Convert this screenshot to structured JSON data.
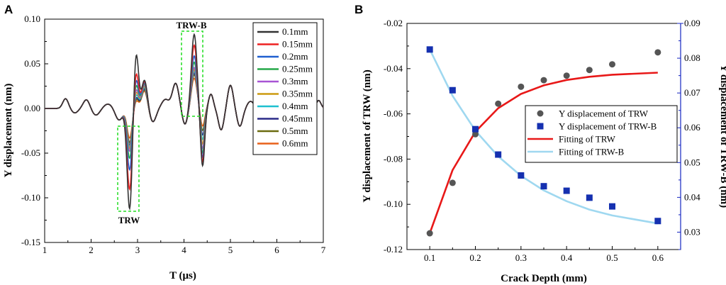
{
  "chart_data": [
    {
      "panel_label": "A",
      "type": "line",
      "title": "",
      "xlabel": "T (μs)",
      "ylabel": "Y displacement (nm)",
      "xlim": [
        1,
        7
      ],
      "ylim": [
        -0.15,
        0.1
      ],
      "xticks": [
        "1",
        "2",
        "3",
        "4",
        "5",
        "6",
        "7"
      ],
      "yticks": [
        "-0.15",
        "-0.10",
        "-0.05",
        "0.00",
        "0.05",
        "0.10"
      ],
      "legend_position": "top-right",
      "annotations": [
        "TRW",
        "TRW-B"
      ],
      "series": [
        {
          "name": "0.1mm",
          "color": "#333333",
          "trw_peak": -0.113,
          "trwb_peak": 0.083,
          "peak_2_85": 0.063
        },
        {
          "name": "0.15mm",
          "color": "#ee2222",
          "trw_peak": -0.091,
          "trwb_peak": 0.071,
          "peak_2_85": 0.041
        },
        {
          "name": "0.2mm",
          "color": "#1f5fd0",
          "trw_peak": -0.069,
          "trwb_peak": 0.059,
          "peak_2_85": 0.033
        },
        {
          "name": "0.25mm",
          "color": "#27a84a",
          "trw_peak": -0.056,
          "trwb_peak": 0.052,
          "peak_2_85": 0.027
        },
        {
          "name": "0.3mm",
          "color": "#a855d4",
          "trw_peak": -0.048,
          "trwb_peak": 0.046,
          "peak_2_85": 0.022
        },
        {
          "name": "0.35mm",
          "color": "#cc9a10",
          "trw_peak": -0.045,
          "trwb_peak": 0.044,
          "peak_2_85": 0.019
        },
        {
          "name": "0.4mm",
          "color": "#1ec0d0",
          "trw_peak": -0.043,
          "trwb_peak": 0.042,
          "peak_2_85": 0.016
        },
        {
          "name": "0.45mm",
          "color": "#2a2a88",
          "trw_peak": -0.041,
          "trwb_peak": 0.04,
          "peak_2_85": 0.013
        },
        {
          "name": "0.5mm",
          "color": "#6b6b10",
          "trw_peak": -0.038,
          "trwb_peak": 0.038,
          "peak_2_85": 0.011
        },
        {
          "name": "0.6mm",
          "color": "#e8611a",
          "trw_peak": -0.033,
          "trwb_peak": 0.034,
          "peak_2_85": 0.009
        }
      ]
    },
    {
      "panel_label": "B",
      "type": "scatter",
      "title": "",
      "xlabel": "Crack Depth (mm)",
      "ylabel": "Y displacement of TRW (nm)",
      "ylabel_right": "Y displacement of TRW-B (nm)",
      "xlim": [
        0.05,
        0.65
      ],
      "ylim": [
        -0.12,
        -0.02
      ],
      "ylim_right": [
        0.025,
        0.09
      ],
      "xticks": [
        "0.1",
        "0.2",
        "0.3",
        "0.4",
        "0.5",
        "0.6"
      ],
      "yticks": [
        "-0.12",
        "-0.10",
        "-0.08",
        "-0.06",
        "-0.04",
        "-0.02"
      ],
      "yticks_right": [
        "0.03",
        "0.04",
        "0.05",
        "0.06",
        "0.07",
        "0.08",
        "0.09"
      ],
      "legend_position": "center-right",
      "x": [
        0.1,
        0.15,
        0.2,
        0.25,
        0.3,
        0.35,
        0.4,
        0.45,
        0.5,
        0.6
      ],
      "series": [
        {
          "name": "Y displacement of TRW",
          "kind": "points",
          "axis": "left",
          "color": "#555555",
          "values": [
            -0.1128,
            -0.0905,
            -0.069,
            -0.0555,
            -0.048,
            -0.0451,
            -0.0431,
            -0.0406,
            -0.0381,
            -0.0328
          ]
        },
        {
          "name": "Y displacement of TRW-B",
          "kind": "points",
          "axis": "right",
          "color": "#1530b0",
          "values": [
            0.0825,
            0.0708,
            0.0596,
            0.0523,
            0.0463,
            0.0432,
            0.0419,
            0.0399,
            0.0374,
            0.0332
          ]
        },
        {
          "name": "Fitting of TRW",
          "kind": "line",
          "axis": "left",
          "color": "#e81818",
          "values": [
            -0.1128,
            -0.0849,
            -0.0679,
            -0.0575,
            -0.0512,
            -0.0474,
            -0.045,
            -0.0436,
            -0.0427,
            -0.0418
          ]
        },
        {
          "name": "Fitting of TRW-B",
          "kind": "line",
          "axis": "right",
          "color": "#9fd8f0",
          "values": [
            0.0825,
            0.0692,
            0.0592,
            0.0518,
            0.0462,
            0.042,
            0.0389,
            0.0365,
            0.0348,
            0.0325
          ]
        }
      ]
    }
  ]
}
